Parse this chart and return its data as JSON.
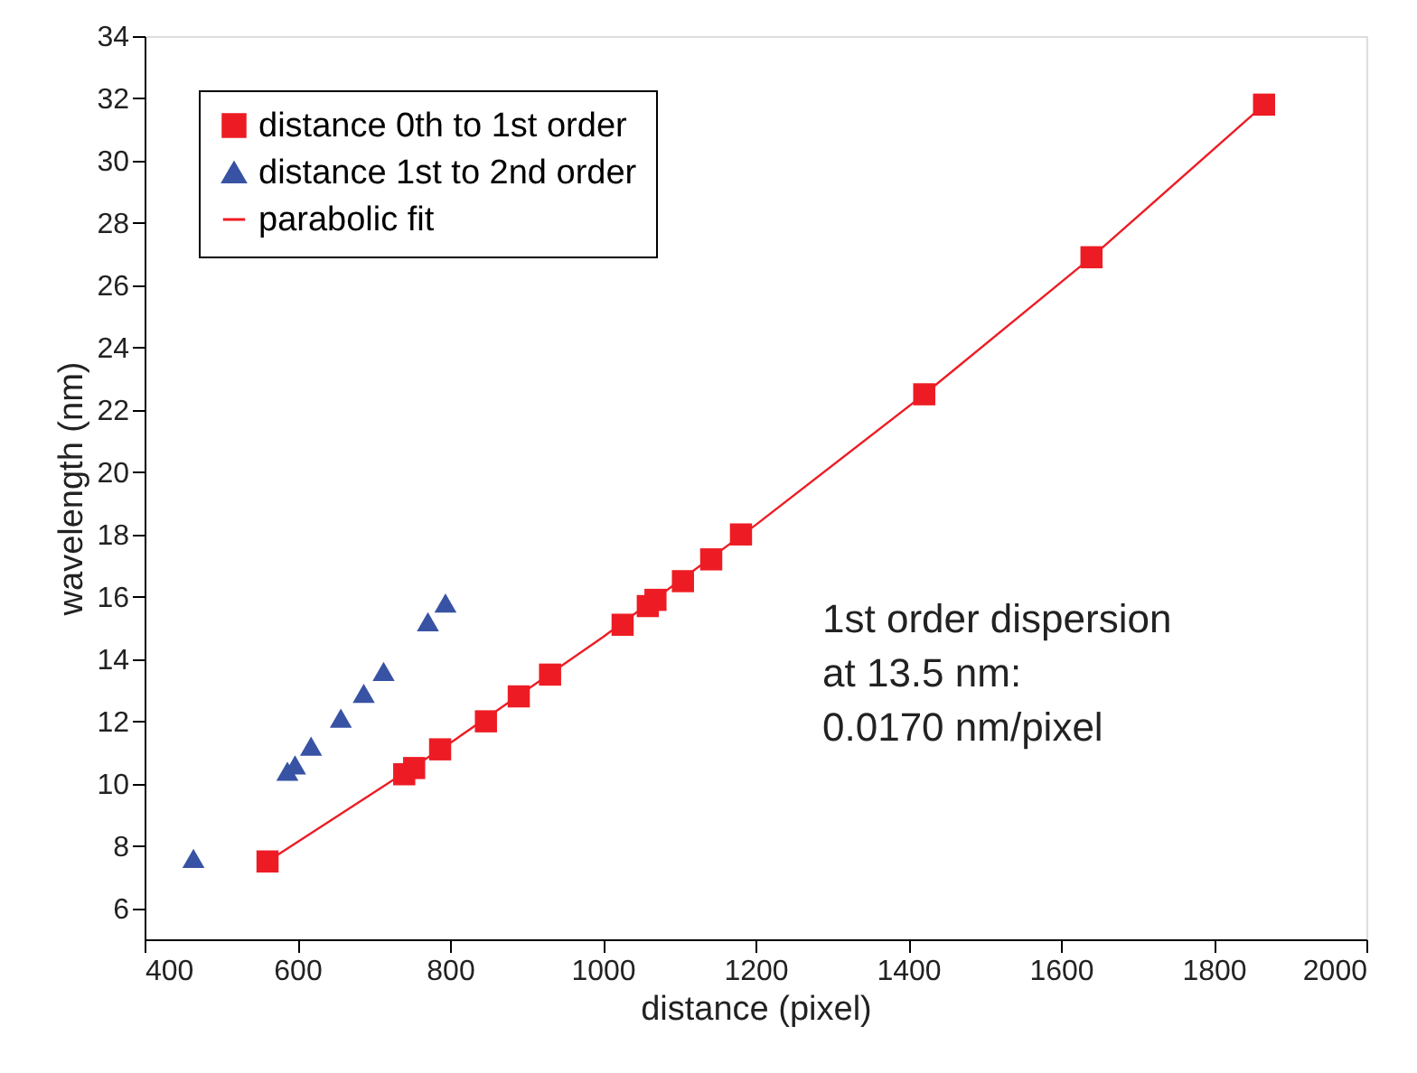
{
  "chart_data": {
    "type": "scatter",
    "xlabel": "distance (pixel)",
    "ylabel": "wavelength (nm)",
    "xlim": [
      400,
      2000
    ],
    "xticks": [
      400,
      600,
      800,
      1000,
      1200,
      1400,
      1600,
      1800,
      2000
    ],
    "ylim": [
      5,
      34
    ],
    "yticks": [
      6,
      8,
      10,
      12,
      14,
      16,
      18,
      20,
      22,
      24,
      26,
      28,
      30,
      32,
      34
    ],
    "grid": false,
    "legend": "top left",
    "annotations": [
      "1st order dispersion\nat 13.5 nm:\n0.0170 nm/pixel"
    ],
    "series": [
      {
        "name": "distance 0th to 1st order",
        "marker": "square",
        "color": "#ed1c24",
        "x": [
          561,
          740,
          753,
          787,
          847,
          890,
          931,
          1026,
          1059,
          1069,
          1105,
          1142,
          1181,
          1421,
          1640,
          1866
        ],
        "values": [
          7.5,
          10.3,
          10.5,
          11.1,
          12.0,
          12.8,
          13.5,
          15.1,
          15.7,
          15.9,
          16.5,
          17.2,
          18.0,
          22.5,
          26.9,
          31.8
        ]
      },
      {
        "name": "distance 1st to 2nd order",
        "marker": "triangle",
        "color": "#3853a4",
        "x": [
          464,
          587,
          597,
          618,
          657,
          687,
          713,
          771,
          794
        ],
        "values": [
          7.6,
          10.4,
          10.6,
          11.2,
          12.1,
          12.9,
          13.6,
          15.2,
          15.8
        ]
      },
      {
        "name": "parabolic fit",
        "type": "line",
        "line_style": "solid",
        "color": "#ed1c24",
        "x": [
          561,
          800,
          1000,
          1200,
          1421,
          1640,
          1866
        ],
        "values": [
          7.5,
          11.3,
          14.7,
          18.3,
          22.5,
          26.9,
          31.8
        ]
      }
    ]
  }
}
